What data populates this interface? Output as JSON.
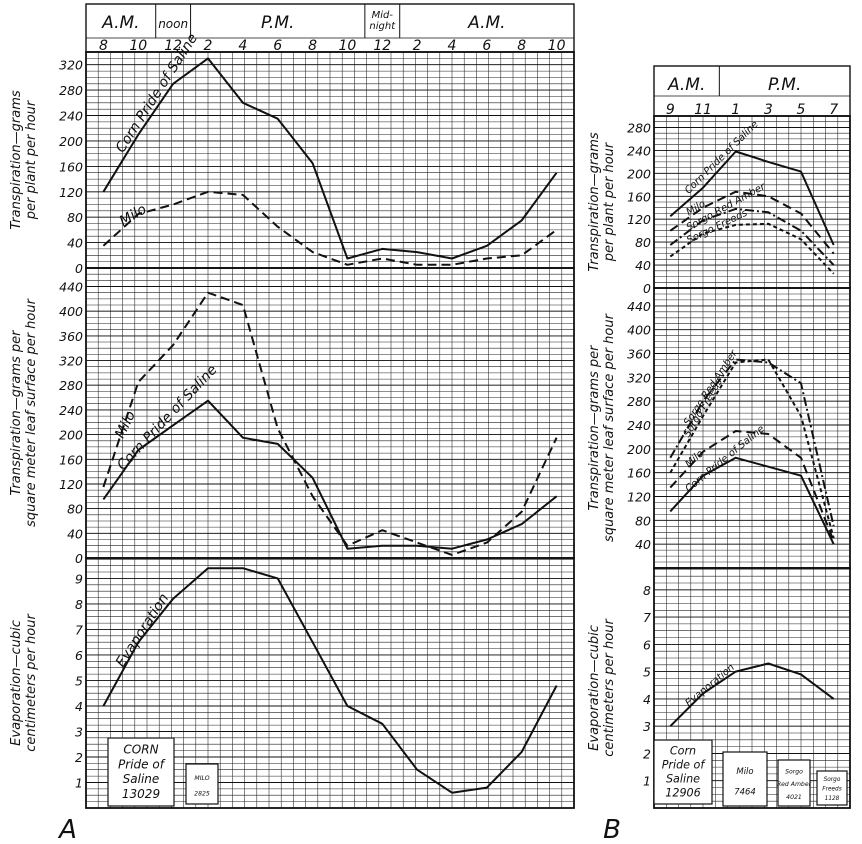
{
  "chart_data": [
    {
      "id": "A",
      "label": "A",
      "type": "line",
      "x_ticks": [
        "8",
        "10",
        "12",
        "2",
        "4",
        "6",
        "8",
        "10",
        "12",
        "2",
        "4",
        "6",
        "8",
        "10"
      ],
      "periods": [
        "A.M.",
        "noon",
        "P.M.",
        "Mid-night",
        "A.M."
      ],
      "panels": [
        {
          "ylabel": "Transpiration—grams per plant per hour",
          "yticks": [
            0,
            40,
            80,
            120,
            160,
            200,
            240,
            280,
            320
          ],
          "ylim": [
            0,
            340
          ],
          "series": [
            {
              "name": "Corn Pride of Saline",
              "style": "solid",
              "x": [
                0,
                1,
                2,
                3,
                4,
                5,
                6,
                7,
                8,
                9,
                10,
                11,
                12,
                13
              ],
              "y": [
                120,
                210,
                290,
                330,
                260,
                235,
                165,
                15,
                30,
                25,
                15,
                35,
                75,
                150
              ]
            },
            {
              "name": "Milo",
              "style": "dashed",
              "x": [
                0,
                1,
                2,
                3,
                4,
                5,
                6,
                7,
                8,
                9,
                10,
                11,
                12,
                13
              ],
              "y": [
                35,
                85,
                100,
                120,
                115,
                65,
                25,
                5,
                15,
                5,
                5,
                15,
                20,
                60
              ]
            }
          ]
        },
        {
          "ylabel": "Transpiration—grams per square meter leaf surface per hour",
          "yticks": [
            0,
            40,
            80,
            120,
            160,
            200,
            240,
            280,
            320,
            360,
            400,
            440
          ],
          "ylim": [
            0,
            470
          ],
          "series": [
            {
              "name": "Corn Pride of Saline",
              "style": "solid",
              "x": [
                0,
                1,
                2,
                3,
                4,
                5,
                6,
                7,
                8,
                9,
                10,
                11,
                12,
                13
              ],
              "y": [
                95,
                175,
                215,
                255,
                195,
                185,
                130,
                15,
                20,
                20,
                15,
                30,
                55,
                100
              ]
            },
            {
              "name": "Milo",
              "style": "dashed",
              "x": [
                0,
                1,
                2,
                3,
                4,
                5,
                6,
                7,
                8,
                9,
                10,
                11,
                12,
                13
              ],
              "y": [
                115,
                285,
                345,
                430,
                410,
                210,
                100,
                20,
                45,
                25,
                5,
                25,
                75,
                195
              ]
            }
          ]
        },
        {
          "ylabel": "Evaporation—cubic centimeters per hour",
          "yticks": [
            1,
            2,
            3,
            4,
            5,
            6,
            7,
            8,
            9
          ],
          "ylim": [
            0,
            9.8
          ],
          "series": [
            {
              "name": "Evaporation",
              "style": "solid",
              "x": [
                0,
                1,
                2,
                3,
                4,
                5,
                6,
                7,
                8,
                9,
                10,
                11,
                12,
                13
              ],
              "y": [
                4.0,
                6.5,
                8.2,
                9.4,
                9.4,
                9.0,
                6.5,
                4.0,
                3.3,
                1.5,
                0.6,
                0.8,
                2.2,
                4.8
              ]
            }
          ]
        }
      ],
      "legend_boxes": [
        {
          "lines": [
            "CORN",
            "Pride of",
            "Saline",
            "13029"
          ]
        },
        {
          "lines": [
            "MILO",
            "2825"
          ]
        }
      ]
    },
    {
      "id": "B",
      "label": "B",
      "type": "line",
      "x_ticks": [
        "9",
        "11",
        "1",
        "3",
        "5",
        "7"
      ],
      "periods": [
        "A.M.",
        "P.M."
      ],
      "panels": [
        {
          "ylabel": "Transpiration—grams per plant per hour",
          "yticks": [
            0,
            40,
            80,
            120,
            160,
            200,
            240,
            280
          ],
          "ylim": [
            0,
            300
          ],
          "series": [
            {
              "name": "Corn Pride of Saline",
              "style": "solid",
              "x": [
                0,
                1,
                2,
                3,
                4,
                5
              ],
              "y": [
                125,
                175,
                238,
                220,
                203,
                75
              ]
            },
            {
              "name": "Milo",
              "style": "dashed",
              "x": [
                0,
                1,
                2,
                3,
                4,
                5
              ],
              "y": [
                100,
                140,
                168,
                160,
                130,
                60
              ]
            },
            {
              "name": "Sorgo Red Amber",
              "style": "dashdot",
              "x": [
                0,
                1,
                2,
                3,
                4,
                5
              ],
              "y": [
                75,
                118,
                138,
                132,
                100,
                40
              ]
            },
            {
              "name": "Sorgo Freeds",
              "style": "dotted",
              "x": [
                0,
                1,
                2,
                3,
                4,
                5
              ],
              "y": [
                55,
                95,
                110,
                112,
                85,
                25
              ]
            }
          ]
        },
        {
          "ylabel": "Transpiration—grams per square meter leaf surface per hour",
          "yticks": [
            40,
            80,
            120,
            160,
            200,
            240,
            280,
            320,
            360,
            400,
            440
          ],
          "ylim": [
            0,
            470
          ],
          "series": [
            {
              "name": "Sorgo Red Amber",
              "style": "dashdot",
              "x": [
                0,
                1,
                2,
                3,
                4,
                5
              ],
              "y": [
                185,
                280,
                350,
                345,
                310,
                70
              ]
            },
            {
              "name": "Sorgo Freeds",
              "style": "dotted",
              "x": [
                0,
                1,
                2,
                3,
                4,
                5
              ],
              "y": [
                160,
                255,
                345,
                350,
                255,
                50
              ]
            },
            {
              "name": "Milo",
              "style": "dashed",
              "x": [
                0,
                1,
                2,
                3,
                4,
                5
              ],
              "y": [
                135,
                195,
                230,
                225,
                185,
                45
              ]
            },
            {
              "name": "Corn Pride of Saline",
              "style": "solid",
              "x": [
                0,
                1,
                2,
                3,
                4,
                5
              ],
              "y": [
                95,
                155,
                185,
                170,
                155,
                40
              ]
            }
          ]
        },
        {
          "ylabel": "Evaporation—cubic centimeters per hour",
          "yticks": [
            1,
            2,
            3,
            4,
            5,
            6,
            7,
            8
          ],
          "ylim": [
            0,
            8.8
          ],
          "series": [
            {
              "name": "Evaporation",
              "style": "solid",
              "x": [
                0,
                1,
                2,
                3,
                4,
                5
              ],
              "y": [
                3.0,
                4.2,
                5.0,
                5.3,
                4.9,
                4.0
              ]
            }
          ]
        }
      ],
      "legend_boxes": [
        {
          "lines": [
            "Corn",
            "Pride of",
            "Saline",
            "12906"
          ]
        },
        {
          "lines": [
            "Milo",
            "7464"
          ]
        },
        {
          "lines": [
            "Sorgo",
            "Red Amber",
            "4021"
          ]
        },
        {
          "lines": [
            "Sorgo",
            "Freeds",
            "1128"
          ]
        }
      ]
    }
  ]
}
